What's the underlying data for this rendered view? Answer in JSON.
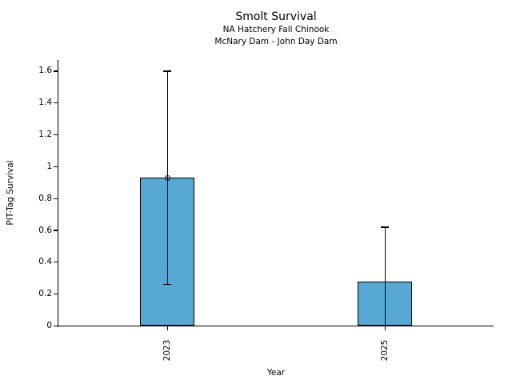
{
  "figure": {
    "kind": "static-plot",
    "background": "#ffffff"
  },
  "chart_data": {
    "type": "bar",
    "title": "Smolt Survival",
    "subtitle1": "NA Hatchery Fall Chinook",
    "subtitle2": "McNary Dam - John Day Dam",
    "xlabel": "Year",
    "ylabel": "PIT-Tag Survival",
    "categories": [
      "2023",
      "2025"
    ],
    "values": [
      0.93,
      0.28
    ],
    "error_low": [
      0.26,
      0.0
    ],
    "error_high": [
      1.6,
      0.62
    ],
    "markers": [
      0.93,
      null
    ],
    "yticks": [
      0,
      0.2,
      0.4,
      0.6,
      0.8,
      1,
      1.2,
      1.4,
      1.6
    ],
    "ytick_labels": [
      "0",
      "0.2",
      "0.4",
      "0.6",
      "0.8",
      "1",
      "1.2",
      "1.4",
      "1.6"
    ],
    "ylim": [
      0,
      1.67
    ],
    "grid": false,
    "legend_position": "none",
    "xtick_label_rotation_deg": -90,
    "bar_color": "#57a9d4",
    "bar_edge_color": "#000000",
    "error_color": "#000000",
    "axis_color": "#000000"
  }
}
